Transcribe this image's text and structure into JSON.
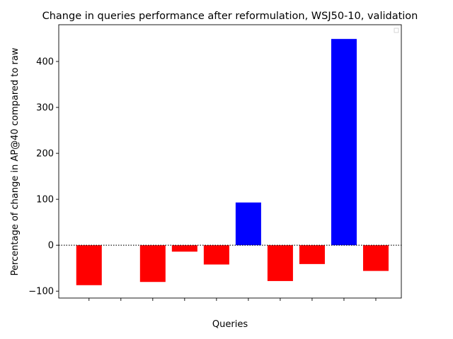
{
  "chart_data": {
    "type": "bar",
    "title": "Change in queries performance after reformulation, WSJ50-10, validation",
    "xlabel": "Queries",
    "ylabel": "Percentage of change in AP@40 compared to raw",
    "ylim": [
      -115,
      480
    ],
    "yticks": [
      -100,
      0,
      100,
      200,
      300,
      400
    ],
    "xlim": [
      -0.95,
      9.8
    ],
    "xtick_positions": [
      0,
      1,
      2,
      3,
      4,
      5,
      6,
      7,
      8,
      9
    ],
    "bar_positions": [
      0,
      2,
      3,
      4,
      5,
      6,
      7,
      8,
      9
    ],
    "values": [
      -87,
      -80,
      -14,
      -42,
      93,
      -78,
      -41,
      449,
      -56
    ],
    "colors": {
      "negative": "#ff0000",
      "positive": "#0000ff",
      "zero_line": "#000000"
    },
    "zero_line_style": "dotted",
    "legend": "top-right (empty)",
    "grid": false
  }
}
